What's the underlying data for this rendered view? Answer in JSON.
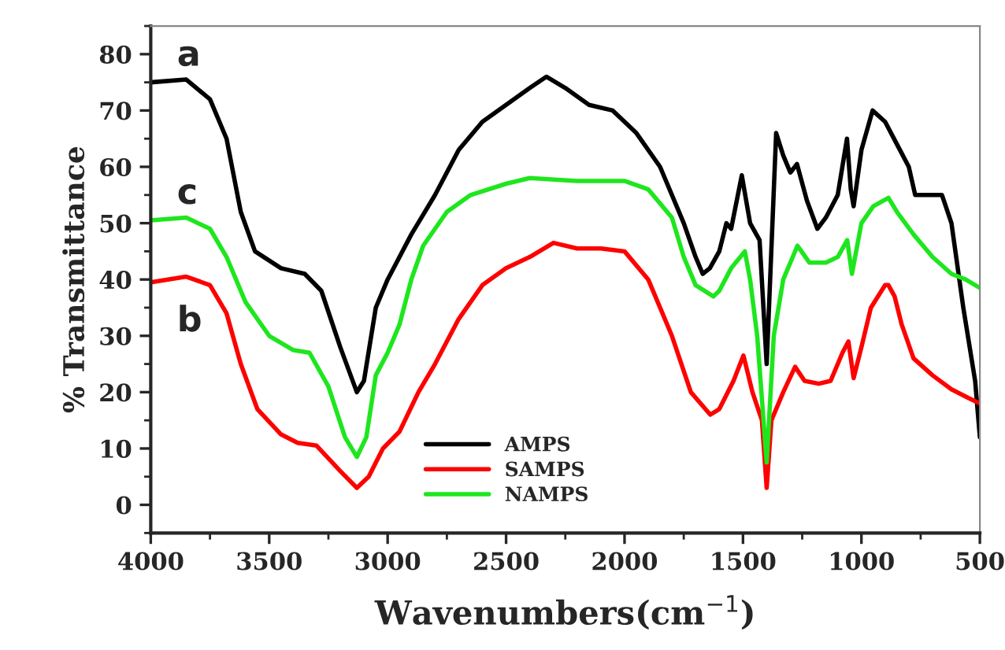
{
  "chart_data": {
    "type": "line",
    "xlabel": "Wavenumbers(cm$^{−1}$)",
    "ylabel": "% Transmittance",
    "xlim": [
      4000,
      500
    ],
    "xticks": [
      4000,
      3500,
      3000,
      2500,
      2000,
      1500,
      1000,
      500
    ],
    "ylim": [
      -5,
      85
    ],
    "yticks": [
      0,
      10,
      20,
      30,
      40,
      50,
      60,
      70,
      80
    ],
    "legend": "bottom",
    "grid": false,
    "line_style": "solid",
    "marker": "none",
    "annotations": [
      "a",
      "b",
      "c"
    ],
    "series": [
      {
        "name": "AMPS",
        "color": "#000000",
        "x": [
          4000,
          3850,
          3750,
          3680,
          3620,
          3560,
          3450,
          3350,
          3280,
          3200,
          3130,
          3100,
          3050,
          3000,
          2900,
          2800,
          2700,
          2600,
          2500,
          2400,
          2330,
          2250,
          2150,
          2050,
          1950,
          1850,
          1750,
          1700,
          1670,
          1640,
          1600,
          1570,
          1550,
          1505,
          1470,
          1430,
          1400,
          1360,
          1330,
          1300,
          1272,
          1230,
          1186,
          1150,
          1100,
          1061,
          1045,
          1033,
          1000,
          953,
          900,
          850,
          800,
          773,
          700,
          660,
          620,
          570,
          520,
          500
        ],
        "values": [
          75,
          75.5,
          72,
          65,
          52,
          45,
          42,
          41,
          38,
          28,
          20,
          22,
          35,
          40,
          48,
          55,
          63,
          68,
          71,
          74,
          76,
          74,
          71,
          70,
          66,
          60,
          50,
          44,
          41,
          42,
          45,
          50,
          49,
          58.5,
          50,
          47,
          25,
          66,
          62,
          59,
          60.5,
          54,
          49,
          51,
          55,
          65,
          56,
          53,
          63,
          70,
          68,
          64,
          60,
          55,
          55,
          55,
          50,
          35,
          22,
          12
        ]
      },
      {
        "name": "SAMPS",
        "color": "#ff0000",
        "x": [
          4000,
          3850,
          3750,
          3680,
          3620,
          3550,
          3450,
          3380,
          3300,
          3200,
          3130,
          3080,
          3020,
          2950,
          2870,
          2800,
          2700,
          2600,
          2500,
          2400,
          2300,
          2200,
          2100,
          2000,
          1900,
          1800,
          1720,
          1638,
          1600,
          1540,
          1498,
          1460,
          1420,
          1400,
          1380,
          1330,
          1280,
          1240,
          1180,
          1130,
          1080,
          1055,
          1033,
          1000,
          960,
          900,
          886,
          860,
          830,
          780,
          700,
          620,
          550,
          500
        ],
        "values": [
          39.5,
          40.5,
          39,
          34,
          25,
          17,
          12.5,
          11,
          10.5,
          6,
          3,
          5,
          10,
          13,
          20,
          25,
          33,
          39,
          42,
          44,
          46.5,
          45.5,
          45.5,
          45,
          40,
          30,
          20,
          16,
          17,
          22,
          26.5,
          20,
          15,
          3,
          15,
          20,
          24.5,
          22,
          21.5,
          22,
          27,
          29,
          22.5,
          28,
          35,
          39,
          39,
          37,
          32,
          26,
          23,
          20.5,
          19,
          18
        ]
      },
      {
        "name": "NAMPS",
        "color": "#1ee61e",
        "x": [
          4000,
          3850,
          3750,
          3680,
          3600,
          3500,
          3400,
          3330,
          3250,
          3180,
          3130,
          3090,
          3050,
          3000,
          2950,
          2900,
          2850,
          2750,
          2650,
          2500,
          2400,
          2200,
          2000,
          1900,
          1800,
          1750,
          1700,
          1625,
          1600,
          1550,
          1492,
          1470,
          1440,
          1400,
          1370,
          1330,
          1270,
          1220,
          1150,
          1100,
          1060,
          1040,
          1000,
          950,
          886,
          850,
          780,
          700,
          620,
          560,
          500
        ],
        "values": [
          50.5,
          51,
          49,
          44,
          36,
          30,
          27.5,
          27,
          21,
          12,
          8.5,
          12,
          23,
          27,
          32,
          40,
          46,
          52,
          55,
          57,
          58,
          57.5,
          57.5,
          56,
          51,
          44,
          39,
          37,
          38,
          42,
          45,
          40,
          30,
          7.5,
          30,
          40,
          46,
          43,
          43,
          44,
          47,
          41,
          50,
          53,
          54.5,
          52,
          48,
          44,
          41,
          40,
          38.5
        ]
      }
    ]
  }
}
